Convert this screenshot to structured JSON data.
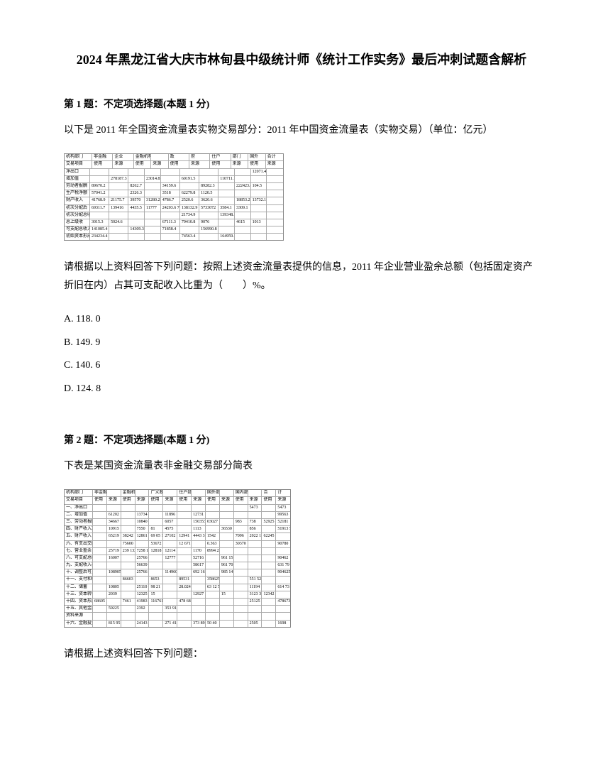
{
  "title": "2024 年黑龙江省大庆市林甸县中级统计师《统计工作实务》最后冲刺试题含解析",
  "question1": {
    "header": "第 1 题：不定项选择题(本题 1 分)",
    "text": "以下是 2011 年全国资金流量表实物交易部分：2011 年中国资金流量表（实物交易）（单位：亿元）",
    "table": {
      "header_row1": [
        "机构部门",
        "非金融",
        "企业",
        "金融机构部门",
        "",
        "政",
        "府",
        "住户",
        "部门",
        "国外",
        "合计"
      ],
      "header_row2": [
        "交易项目",
        "使用",
        "来源",
        "使用",
        "来源",
        "使用",
        "来源",
        "使用",
        "来源",
        "使用",
        "来源"
      ],
      "rows": [
        [
          "净出口",
          "",
          "",
          "",
          "",
          "",
          "",
          "",
          "",
          "",
          "12071.4",
          ""
        ],
        [
          "增加值",
          "",
          "278187.3",
          "",
          "23014.8",
          "",
          "60191.5",
          "",
          "110711.1",
          "",
          "",
          ""
        ],
        [
          "劳动者报酬",
          "89670.2",
          "",
          "8262.7",
          "",
          "34159.6",
          "",
          "89282.3",
          "",
          "222423.8 1175.1",
          "104.5",
          ""
        ],
        [
          "生产税净额",
          "57041.2",
          "",
          "2326.3",
          "",
          "3518",
          "62279.8",
          "1120.5",
          "",
          "",
          "",
          ""
        ],
        [
          "财产收入",
          "41768.9",
          "21175.7",
          "39570",
          "31280.2",
          "4786.7",
          "2520.6",
          "3620.6",
          "",
          "18853.2 5217.9",
          "13732.1",
          ""
        ],
        [
          "初次分配后",
          "69311.7",
          "139416",
          "4435.5",
          "11777",
          "24203.6 71725.8",
          "138132.9",
          "5733072",
          "3584.1",
          "3309.1",
          "",
          ""
        ],
        [
          "初次分配总收",
          "",
          "",
          "",
          "",
          "",
          "21734.9",
          "",
          "139348.8",
          "",
          "",
          ""
        ],
        [
          "总上级收",
          "3015.3",
          "5024.6",
          "",
          "",
          "67111.3",
          "79410.8",
          "9076",
          "",
          "4615",
          "1013",
          ""
        ],
        [
          "可支配总收入",
          "141085.4",
          "",
          "14309.3",
          "",
          "71858.4",
          "",
          "156990.8",
          "",
          "",
          "",
          ""
        ],
        [
          "初始资本形成",
          "234234.4",
          "",
          "",
          "",
          "",
          "74563.4",
          "",
          "164959.6",
          "",
          "",
          ""
        ]
      ]
    },
    "prompt": "请根据以上资料回答下列问题：按照上述资金流量表提供的信息，2011 年企业营业盈余总额（包括固定资产折旧在内）占其可支配收入比重为（　　）%。",
    "options": {
      "A": "A. 118. 0",
      "B": "B. 149. 9",
      "C": "C. 140. 6",
      "D": "D. 124. 8"
    }
  },
  "question2": {
    "header": "第 2 题：不定项选择题(本题 1 分)",
    "text": "下表是某国资金流量表非金融交易部分简表",
    "table": {
      "header_row1": [
        "机构部门",
        "非金融企业部门",
        "",
        "金融机构部门",
        "",
        "广义政府部门",
        "",
        "住户部门",
        "",
        "国外部门",
        "",
        "国内部门",
        "",
        "合",
        "计"
      ],
      "header_row2": [
        "交易项目",
        "使用",
        "来源",
        "使用",
        "来源",
        "使用",
        "来源",
        "使用",
        "来源",
        "使用",
        "来源",
        "使用",
        "来源",
        "使用",
        "来源"
      ],
      "rows": [
        [
          "一、净出口",
          "",
          "",
          "",
          "",
          "",
          "",
          "",
          "",
          "",
          "",
          "",
          "5473",
          "",
          "5473"
        ],
        [
          "二、增加值",
          "",
          "61202",
          "",
          "13734",
          "",
          "11896",
          "",
          "12731",
          "",
          "",
          "",
          "",
          "",
          "99563"
        ],
        [
          "三、劳动者报酬",
          "",
          "34667",
          "",
          "10840",
          "",
          "6057",
          "",
          "1503531017 11596",
          "03027",
          "",
          "983",
          "738",
          "52925",
          "52181"
        ],
        [
          "四、财产收入净额",
          "",
          "10915",
          "",
          "7550",
          "81",
          "4575",
          "",
          "1113",
          "",
          "36530",
          "",
          "856",
          "",
          "51913 52913"
        ],
        [
          "五、财产收入",
          "",
          "65219",
          "38242",
          "12861",
          "69 05 12023",
          "27102",
          "12941",
          "4443 35949-81",
          "1542",
          "",
          "7096",
          "2022 138229",
          "62245",
          ""
        ],
        [
          "六、有支出交的投入入",
          "",
          "",
          "75600",
          "",
          "53672",
          "",
          "12 671",
          "",
          "0.363",
          "",
          "30370",
          "",
          "",
          "90780"
        ],
        [
          "七、营业盈余",
          "",
          "25719",
          "239 132173",
          "7258 19874",
          "12818",
          "12114 30530-56 35914",
          "",
          "1170",
          "8994 229778 255768",
          "",
          "",
          "",
          "",
          ""
        ],
        [
          "八、可支配总收入",
          "",
          "16007",
          "",
          "25766",
          "",
          "12777",
          "",
          "52716",
          "",
          "961 15",
          "",
          "",
          "",
          "90462"
        ],
        [
          "九、支配收入构成",
          "",
          "",
          "",
          "56639",
          "",
          "",
          "",
          "58617",
          "",
          "961 70 19377",
          "",
          "",
          "",
          "631 79 55378"
        ],
        [
          "十、调整后可支收入",
          "",
          "108905",
          "",
          "25766",
          "",
          "114960",
          "",
          "692 161",
          "",
          "985 14",
          "",
          "",
          "",
          "904625"
        ],
        [
          "十一、支付和收现金",
          "",
          "",
          "86603",
          "",
          "8653",
          "",
          "89531",
          "",
          "358625",
          "",
          "",
          "551 52",
          "",
          ""
        ],
        [
          "十二、储蓄",
          "",
          "10805",
          "",
          "25110",
          "98 21",
          "",
          "28.024",
          "",
          "63 12 525",
          "",
          "",
          "11194",
          "",
          "614 73"
        ],
        [
          "十三、资本转移",
          "",
          "2039",
          "",
          "12325",
          "15",
          "",
          "",
          "12927 12595",
          "",
          "15",
          "",
          "3123 32",
          "12342",
          ""
        ],
        [
          "十四、资本形成总额",
          "68605",
          "",
          "7461",
          "41983",
          "116761",
          "",
          "478 68",
          "",
          "",
          "",
          "",
          "25125",
          "",
          "478673"
        ],
        [
          "十五、其他金属资产",
          "",
          "59225",
          "",
          "2392",
          "",
          "353 91",
          "",
          "",
          "",
          "",
          "",
          "",
          "",
          ""
        ],
        [
          "资料来源",
          "",
          "",
          "",
          "",
          "",
          "",
          "",
          "",
          "",
          "",
          "",
          "",
          "",
          ""
        ],
        [
          "十六、金融投资",
          "",
          "815 95",
          "",
          "24143",
          "",
          "271 41",
          "",
          "373 89",
          "50 40",
          "",
          "",
          "2505",
          "",
          "1698"
        ]
      ]
    },
    "prompt": "请根据上述资料回答下列问题："
  }
}
